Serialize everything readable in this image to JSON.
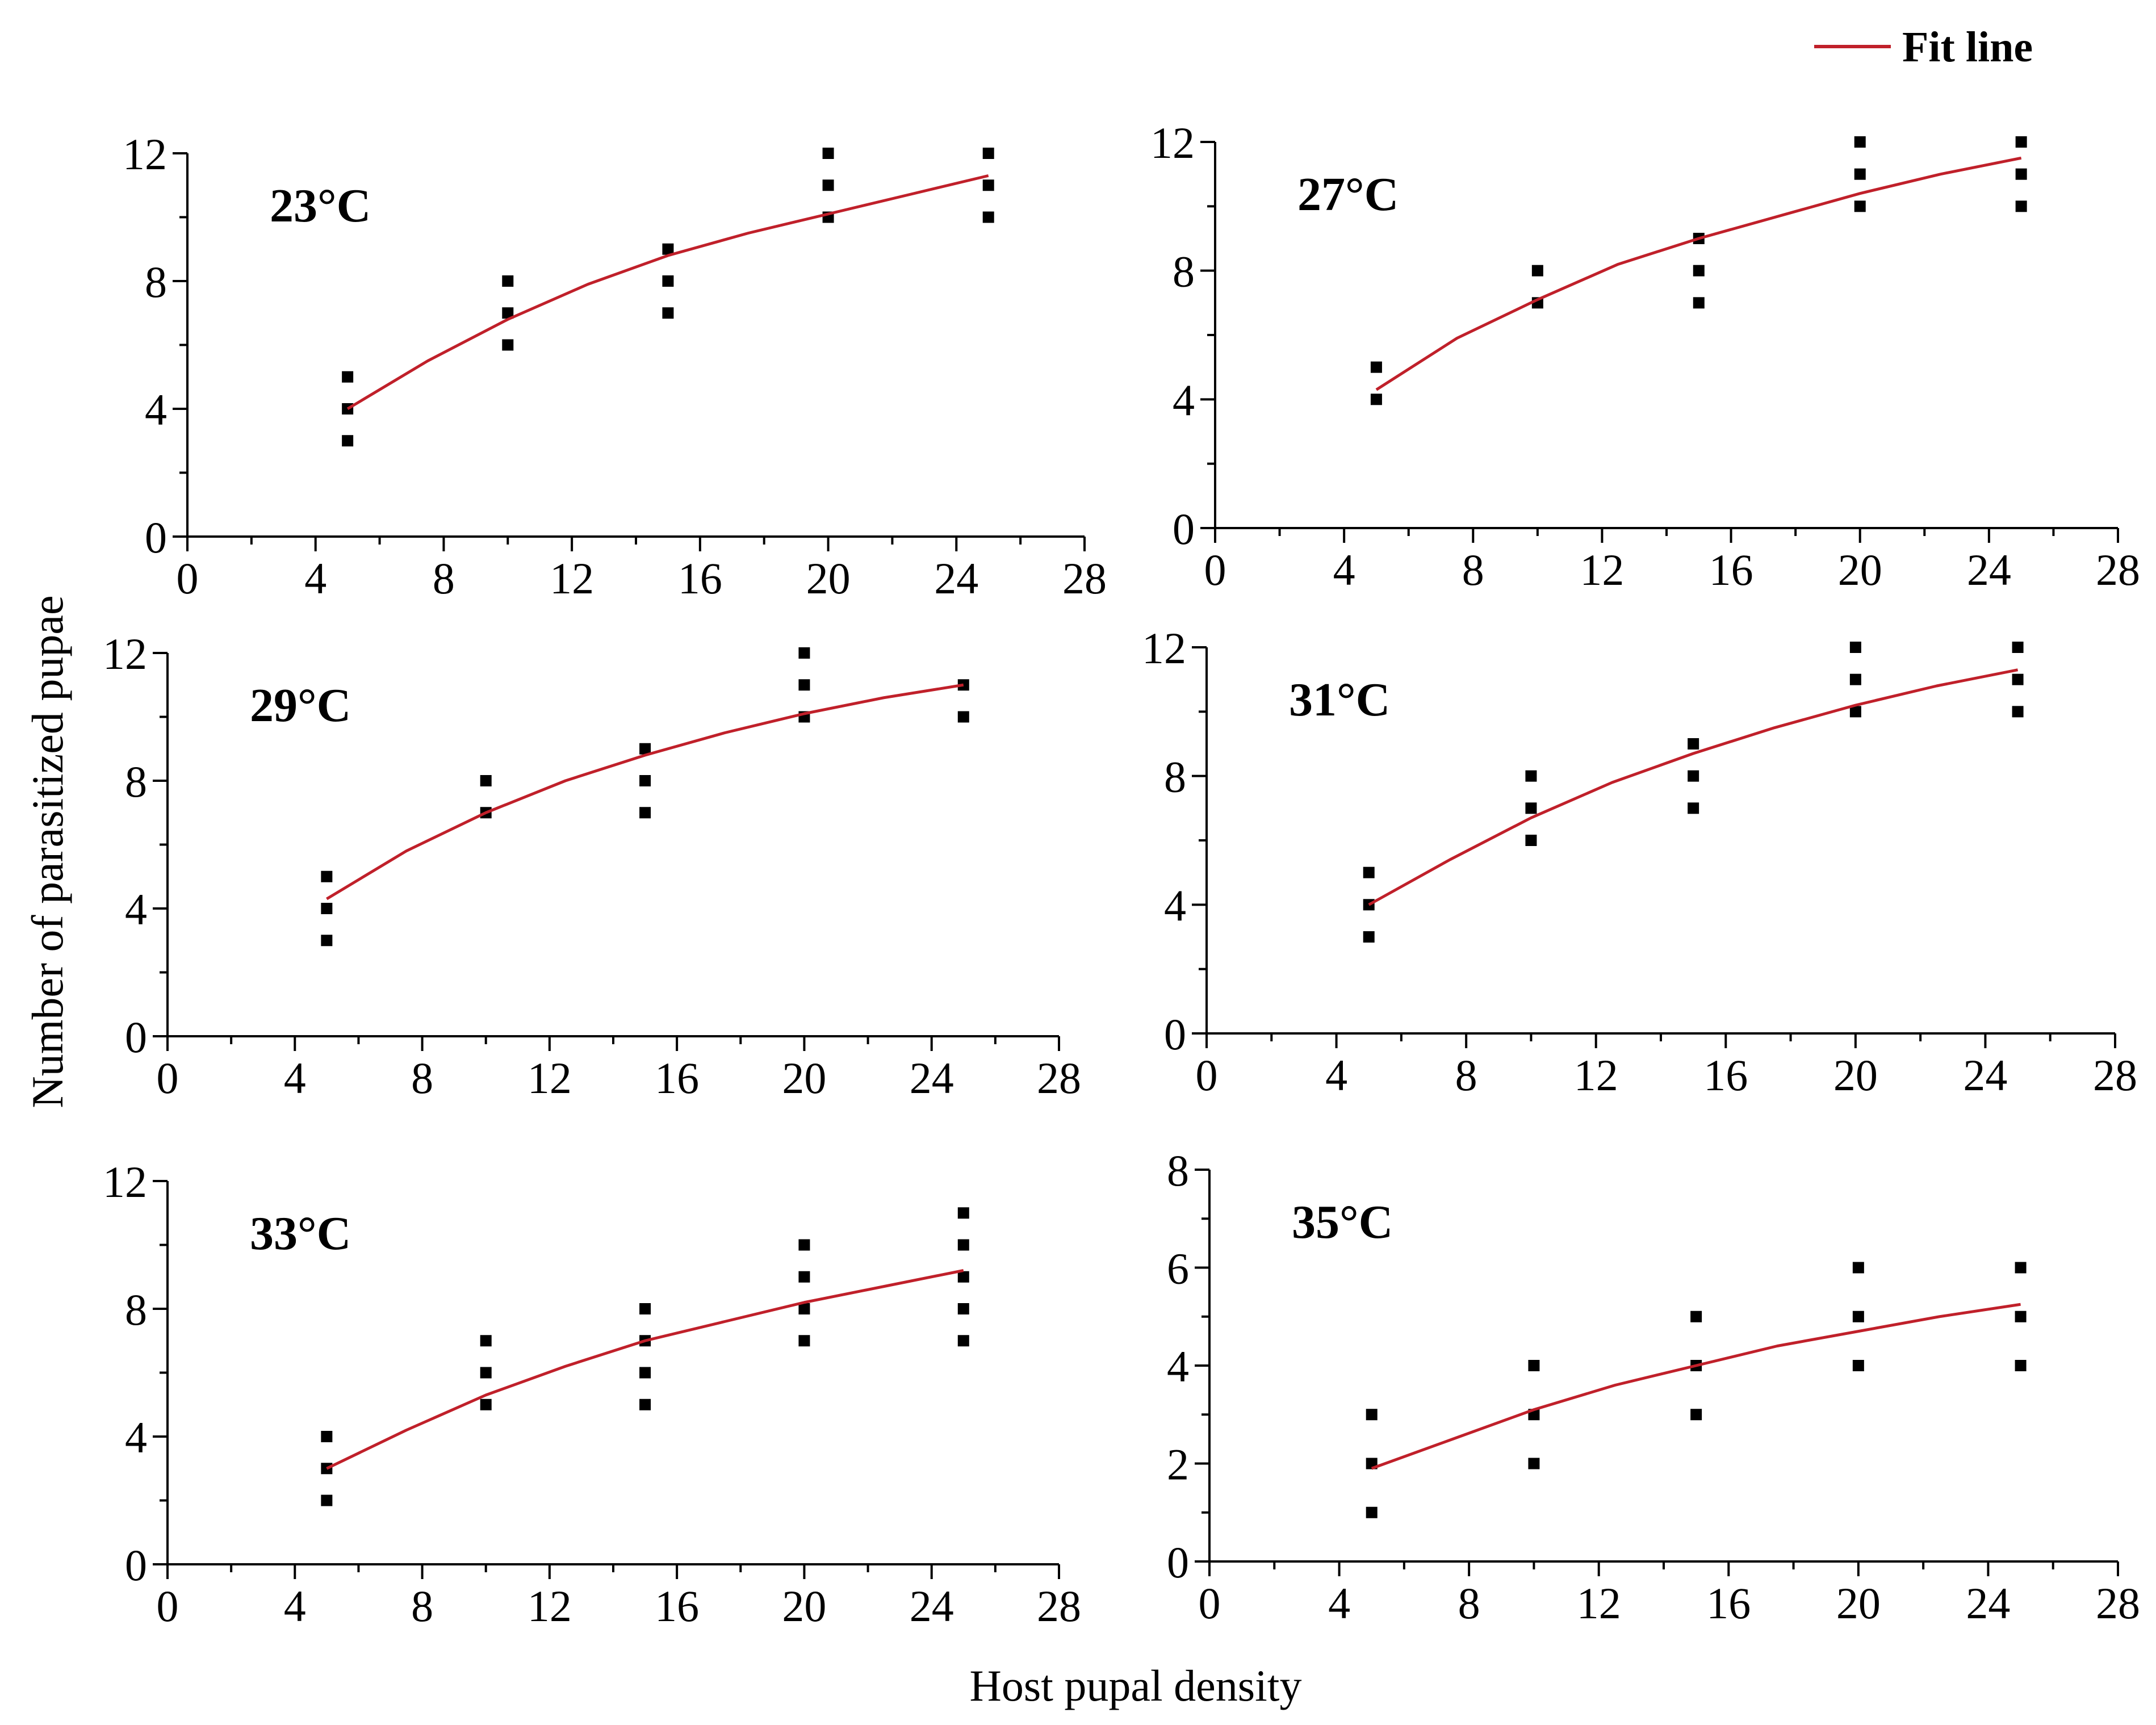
{
  "figure": {
    "ylabel": "Number of parasitized pupae",
    "xlabel": "Host pupal density",
    "legend": {
      "label": "Fit line",
      "color": "#c0202a",
      "placement": "top-right"
    },
    "point_color": "#000000"
  },
  "chart_data": [
    {
      "type": "scatter",
      "panel": "23°C",
      "title": "23°C",
      "xlim": [
        0,
        28
      ],
      "xticks": [
        0,
        4,
        8,
        12,
        16,
        20,
        24,
        28
      ],
      "ylim": [
        0,
        12
      ],
      "yticks": [
        0,
        4,
        8,
        12
      ],
      "points": [
        [
          5,
          3
        ],
        [
          5,
          4
        ],
        [
          5,
          5
        ],
        [
          10,
          6
        ],
        [
          10,
          7
        ],
        [
          10,
          8
        ],
        [
          15,
          7
        ],
        [
          15,
          8
        ],
        [
          15,
          9
        ],
        [
          20,
          10
        ],
        [
          20,
          11
        ],
        [
          20,
          12
        ],
        [
          25,
          10
        ],
        [
          25,
          11
        ],
        [
          25,
          12
        ]
      ],
      "fit_line": {
        "x": [
          5,
          7.5,
          10,
          12.5,
          15,
          17.5,
          20,
          22.5,
          25
        ],
        "y": [
          4.0,
          5.5,
          6.8,
          7.9,
          8.8,
          9.5,
          10.1,
          10.7,
          11.3
        ]
      }
    },
    {
      "type": "scatter",
      "panel": "27°C",
      "title": "27°C",
      "xlim": [
        0,
        28
      ],
      "xticks": [
        0,
        4,
        8,
        12,
        16,
        20,
        24,
        28
      ],
      "ylim": [
        0,
        12
      ],
      "yticks": [
        0,
        4,
        8,
        12
      ],
      "points": [
        [
          5,
          4
        ],
        [
          5,
          5
        ],
        [
          10,
          7
        ],
        [
          10,
          8
        ],
        [
          15,
          7
        ],
        [
          15,
          8
        ],
        [
          15,
          9
        ],
        [
          20,
          10
        ],
        [
          20,
          11
        ],
        [
          20,
          12
        ],
        [
          25,
          10
        ],
        [
          25,
          11
        ],
        [
          25,
          12
        ]
      ],
      "fit_line": {
        "x": [
          5,
          7.5,
          10,
          12.5,
          15,
          17.5,
          20,
          22.5,
          25
        ],
        "y": [
          4.3,
          5.9,
          7.1,
          8.2,
          9.0,
          9.7,
          10.4,
          11.0,
          11.5
        ]
      }
    },
    {
      "type": "scatter",
      "panel": "29°C",
      "title": "29°C",
      "xlim": [
        0,
        28
      ],
      "xticks": [
        0,
        4,
        8,
        12,
        16,
        20,
        24,
        28
      ],
      "ylim": [
        0,
        12
      ],
      "yticks": [
        0,
        4,
        8,
        12
      ],
      "points": [
        [
          5,
          3
        ],
        [
          5,
          4
        ],
        [
          5,
          5
        ],
        [
          10,
          7
        ],
        [
          10,
          8
        ],
        [
          15,
          7
        ],
        [
          15,
          8
        ],
        [
          15,
          9
        ],
        [
          20,
          10
        ],
        [
          20,
          11
        ],
        [
          20,
          12
        ],
        [
          25,
          10
        ],
        [
          25,
          11
        ]
      ],
      "fit_line": {
        "x": [
          5,
          7.5,
          10,
          12.5,
          15,
          17.5,
          20,
          22.5,
          25
        ],
        "y": [
          4.3,
          5.8,
          7.0,
          8.0,
          8.8,
          9.5,
          10.1,
          10.6,
          11.0
        ]
      }
    },
    {
      "type": "scatter",
      "panel": "31°C",
      "title": "31°C",
      "xlim": [
        0,
        28
      ],
      "xticks": [
        0,
        4,
        8,
        12,
        16,
        20,
        24,
        28
      ],
      "ylim": [
        0,
        12
      ],
      "yticks": [
        0,
        4,
        8,
        12
      ],
      "points": [
        [
          5,
          3
        ],
        [
          5,
          4
        ],
        [
          5,
          5
        ],
        [
          10,
          6
        ],
        [
          10,
          7
        ],
        [
          10,
          8
        ],
        [
          15,
          7
        ],
        [
          15,
          8
        ],
        [
          15,
          9
        ],
        [
          20,
          10
        ],
        [
          20,
          11
        ],
        [
          20,
          12
        ],
        [
          25,
          10
        ],
        [
          25,
          11
        ],
        [
          25,
          12
        ]
      ],
      "fit_line": {
        "x": [
          5,
          7.5,
          10,
          12.5,
          15,
          17.5,
          20,
          22.5,
          25
        ],
        "y": [
          4.0,
          5.4,
          6.7,
          7.8,
          8.7,
          9.5,
          10.2,
          10.8,
          11.3
        ]
      }
    },
    {
      "type": "scatter",
      "panel": "33°C",
      "title": "33°C",
      "xlim": [
        0,
        28
      ],
      "xticks": [
        0,
        4,
        8,
        12,
        16,
        20,
        24,
        28
      ],
      "ylim": [
        0,
        12
      ],
      "yticks": [
        0,
        4,
        8,
        12
      ],
      "points": [
        [
          5,
          2
        ],
        [
          5,
          3
        ],
        [
          5,
          4
        ],
        [
          10,
          5
        ],
        [
          10,
          6
        ],
        [
          10,
          7
        ],
        [
          15,
          5
        ],
        [
          15,
          6
        ],
        [
          15,
          7
        ],
        [
          15,
          8
        ],
        [
          20,
          7
        ],
        [
          20,
          8
        ],
        [
          20,
          9
        ],
        [
          20,
          10
        ],
        [
          25,
          7
        ],
        [
          25,
          8
        ],
        [
          25,
          9
        ],
        [
          25,
          10
        ],
        [
          25,
          11
        ]
      ],
      "fit_line": {
        "x": [
          5,
          7.5,
          10,
          12.5,
          15,
          17.5,
          20,
          22.5,
          25
        ],
        "y": [
          3.0,
          4.2,
          5.3,
          6.2,
          7.0,
          7.6,
          8.2,
          8.7,
          9.2
        ]
      }
    },
    {
      "type": "scatter",
      "panel": "35°C",
      "title": "35°C",
      "xlim": [
        0,
        28
      ],
      "xticks": [
        0,
        4,
        8,
        12,
        16,
        20,
        24,
        28
      ],
      "ylim": [
        0,
        8
      ],
      "yticks": [
        0,
        2,
        4,
        6,
        8
      ],
      "points": [
        [
          5,
          1
        ],
        [
          5,
          2
        ],
        [
          5,
          3
        ],
        [
          10,
          2
        ],
        [
          10,
          3
        ],
        [
          10,
          4
        ],
        [
          15,
          3
        ],
        [
          15,
          4
        ],
        [
          15,
          5
        ],
        [
          20,
          4
        ],
        [
          20,
          5
        ],
        [
          20,
          6
        ],
        [
          25,
          4
        ],
        [
          25,
          5
        ],
        [
          25,
          6
        ]
      ],
      "fit_line": {
        "x": [
          5,
          7.5,
          10,
          12.5,
          15,
          17.5,
          20,
          22.5,
          25
        ],
        "y": [
          1.9,
          2.5,
          3.1,
          3.6,
          4.0,
          4.4,
          4.7,
          5.0,
          5.25
        ]
      }
    }
  ]
}
